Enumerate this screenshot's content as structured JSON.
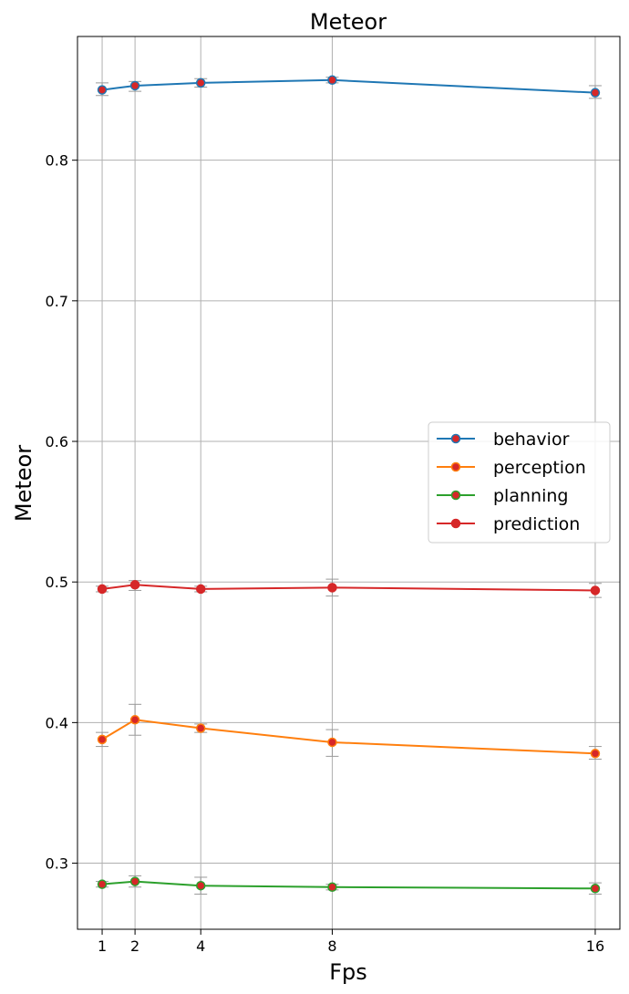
{
  "chart_data": {
    "type": "line",
    "title": "Meteor",
    "xlabel": "Fps",
    "ylabel": "Meteor",
    "x": [
      1,
      2,
      4,
      8,
      16
    ],
    "x_tick_labels": [
      "1",
      "2",
      "4",
      "8",
      "16"
    ],
    "xlim": [
      0.25,
      16.75
    ],
    "ylim": [
      0.253,
      0.888
    ],
    "y_ticks": [
      0.3,
      0.4,
      0.5,
      0.6,
      0.7,
      0.8
    ],
    "y_tick_labels": [
      "0.3",
      "0.4",
      "0.5",
      "0.6",
      "0.7",
      "0.8"
    ],
    "grid": true,
    "legend_position": "center-right",
    "error_bar_color": "#999999",
    "series": [
      {
        "name": "behavior",
        "color": "#1f77b4",
        "marker_face": "#d62728",
        "values": [
          0.85,
          0.853,
          0.855,
          0.857,
          0.848
        ],
        "error_low": [
          0.846,
          0.849,
          0.852,
          0.855,
          0.844
        ],
        "error_high": [
          0.855,
          0.856,
          0.858,
          0.859,
          0.853
        ]
      },
      {
        "name": "perception",
        "color": "#ff7f0e",
        "marker_face": "#d62728",
        "values": [
          0.388,
          0.402,
          0.396,
          0.386,
          0.378
        ],
        "error_low": [
          0.383,
          0.391,
          0.393,
          0.376,
          0.374
        ],
        "error_high": [
          0.393,
          0.413,
          0.399,
          0.395,
          0.383
        ]
      },
      {
        "name": "planning",
        "color": "#2ca02c",
        "marker_face": "#d62728",
        "values": [
          0.285,
          0.287,
          0.284,
          0.283,
          0.282
        ],
        "error_low": [
          0.283,
          0.283,
          0.278,
          0.281,
          0.278
        ],
        "error_high": [
          0.287,
          0.291,
          0.29,
          0.285,
          0.286
        ]
      },
      {
        "name": "prediction",
        "color": "#d62728",
        "marker_face": "#d62728",
        "values": [
          0.495,
          0.498,
          0.495,
          0.496,
          0.494
        ],
        "error_low": [
          0.493,
          0.494,
          0.493,
          0.49,
          0.489
        ],
        "error_high": [
          0.497,
          0.501,
          0.497,
          0.502,
          0.499
        ]
      }
    ]
  }
}
